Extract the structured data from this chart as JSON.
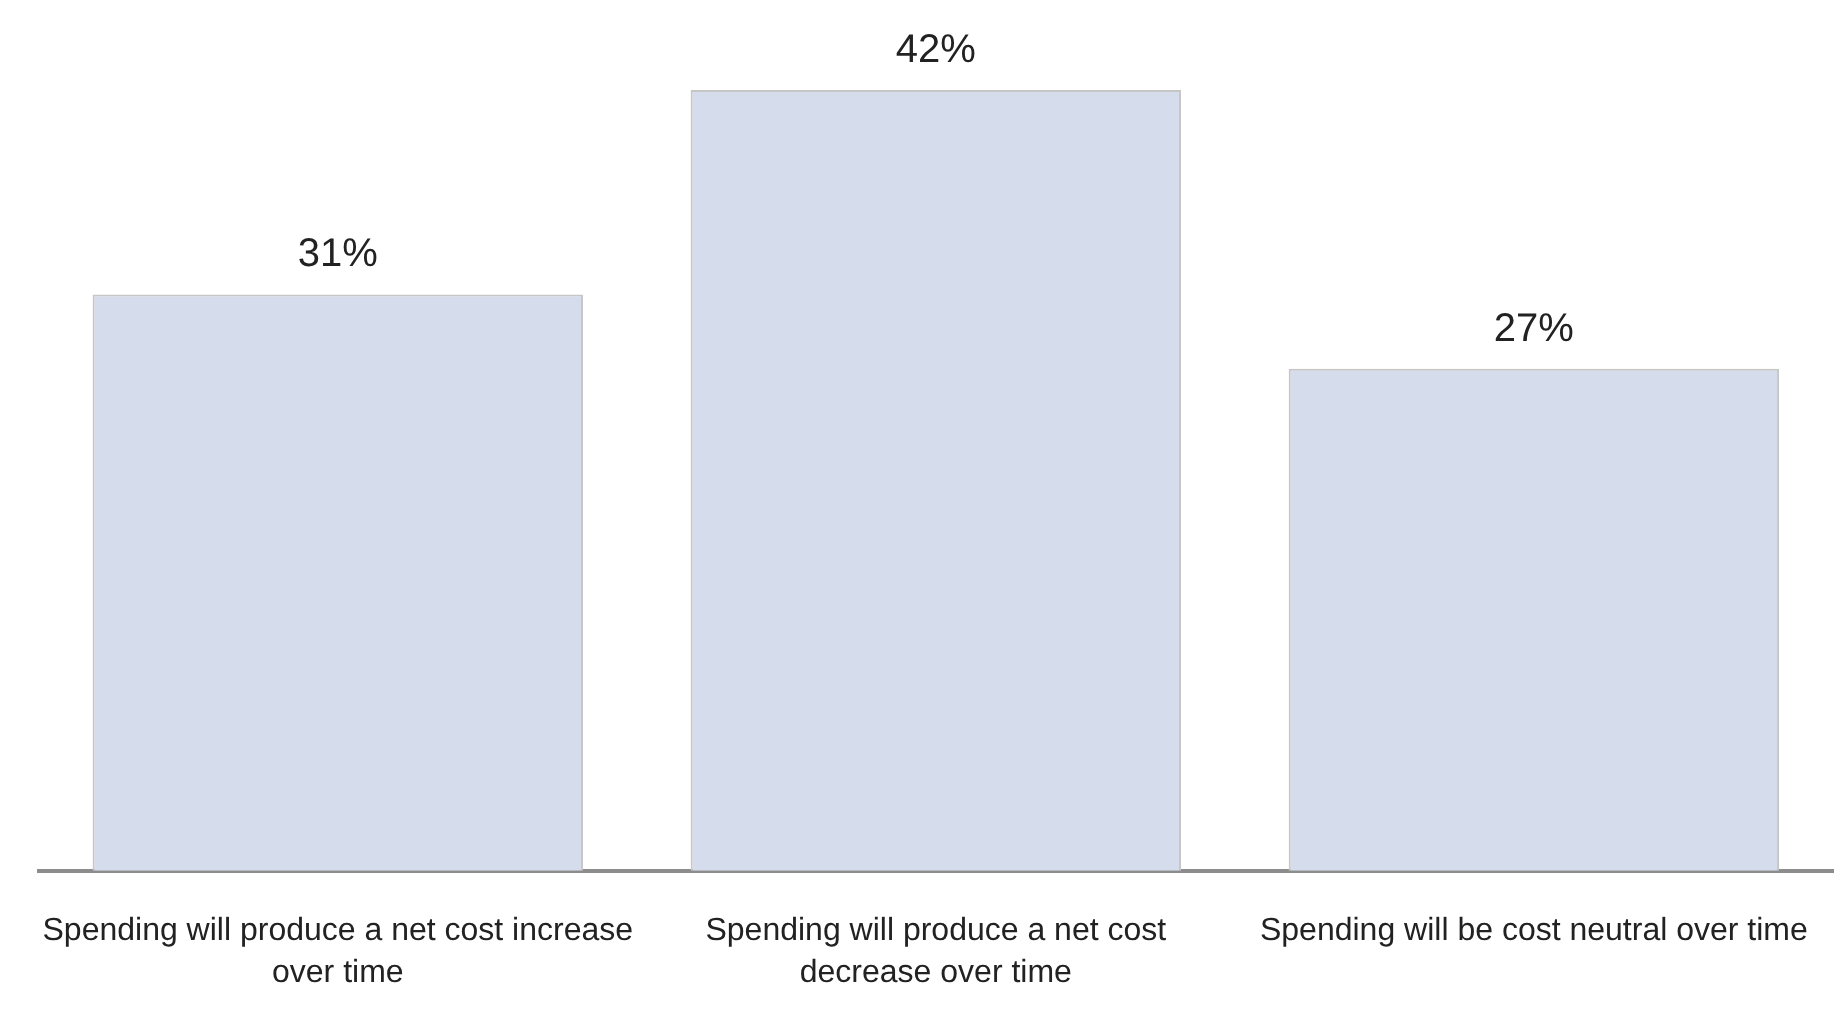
{
  "chart_data": {
    "type": "bar",
    "categories": [
      "Spending will produce a net cost increase over time",
      "Spending will produce a net cost decrease over time",
      "Spending will be cost neutral over time"
    ],
    "values": [
      31,
      42,
      27
    ],
    "color": "#d5dcec",
    "value_labels": [
      "31%",
      "42%",
      "27%"
    ]
  }
}
